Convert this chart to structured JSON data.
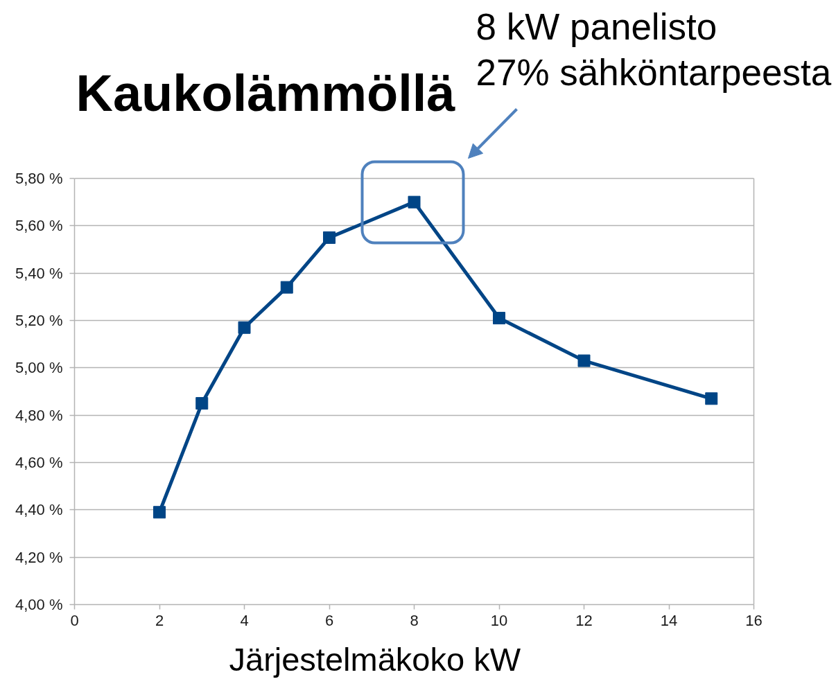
{
  "chart_data": {
    "type": "line",
    "title": "Kaukolämmöllä",
    "xlabel": "Järjestelmäkoko kW",
    "x": [
      2,
      3,
      4,
      5,
      6,
      8,
      10,
      12,
      15
    ],
    "series": [
      {
        "color": "#004586",
        "values": [
          4.39,
          4.85,
          5.17,
          5.34,
          5.55,
          5.7,
          5.21,
          5.03,
          4.87
        ]
      }
    ],
    "xlim": [
      0,
      16
    ],
    "xticks": [
      0,
      2,
      4,
      6,
      8,
      10,
      12,
      14,
      16
    ],
    "ylim": [
      4.0,
      5.8
    ],
    "yticks": [
      {
        "value": 4.0,
        "label": "4,00 %"
      },
      {
        "value": 4.2,
        "label": "4,20 %"
      },
      {
        "value": 4.4,
        "label": "4,40 %"
      },
      {
        "value": 4.6,
        "label": "4,60 %"
      },
      {
        "value": 4.8,
        "label": "4,80 %"
      },
      {
        "value": 5.0,
        "label": "5,00 %"
      },
      {
        "value": 5.2,
        "label": "5,20 %"
      },
      {
        "value": 5.4,
        "label": "5,40 %"
      },
      {
        "value": 5.6,
        "label": "5,60 %"
      },
      {
        "value": 5.8,
        "label": "5,80 %"
      }
    ],
    "grid": "y",
    "marker": "square",
    "line_style": "solid",
    "annotations": [
      "8 kW panelisto\n27% sähköntarpeesta"
    ]
  }
}
